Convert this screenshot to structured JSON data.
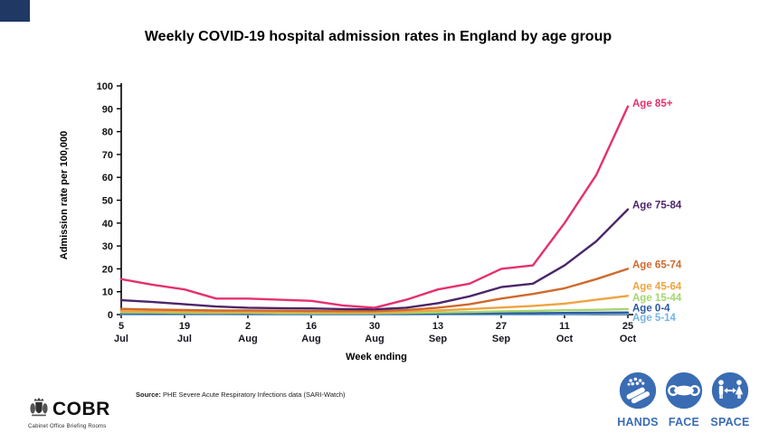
{
  "title": "Weekly COVID-19 hospital admission rates in England by age group",
  "corner_accent_color": "#1f3864",
  "chart_data": {
    "type": "line",
    "title": "Weekly COVID-19 hospital admission rates in England by age group",
    "xlabel": "Week ending",
    "ylabel": "Admission rate per 100,000",
    "ylim": [
      0,
      100
    ],
    "y_ticks": [
      0,
      10,
      20,
      30,
      40,
      50,
      60,
      70,
      80,
      90,
      100
    ],
    "grid": false,
    "legend_position": "right-end-labels",
    "x": [
      "5 Jul",
      "12 Jul",
      "19 Jul",
      "26 Jul",
      "2 Aug",
      "9 Aug",
      "16 Aug",
      "23 Aug",
      "30 Aug",
      "6 Sep",
      "13 Sep",
      "20 Sep",
      "27 Sep",
      "4 Oct",
      "11 Oct",
      "18 Oct",
      "25 Oct"
    ],
    "x_tick_labels": [
      {
        "day": "5",
        "month": "Jul"
      },
      {
        "day": "19",
        "month": "Jul"
      },
      {
        "day": "2",
        "month": "Aug"
      },
      {
        "day": "16",
        "month": "Aug"
      },
      {
        "day": "30",
        "month": "Aug"
      },
      {
        "day": "13",
        "month": "Sep"
      },
      {
        "day": "27",
        "month": "Sep"
      },
      {
        "day": "11",
        "month": "Oct"
      },
      {
        "day": "25",
        "month": "Oct"
      }
    ],
    "series": [
      {
        "name": "Age 85+",
        "color": "#e5316e",
        "values": [
          15.5,
          13,
          11,
          7,
          7,
          6.5,
          6,
          4,
          3,
          6.5,
          11,
          13.5,
          20,
          21.5,
          40,
          61,
          91
        ]
      },
      {
        "name": "Age 75-84",
        "color": "#4b2669",
        "values": [
          6.3,
          5.5,
          4.5,
          3.5,
          3,
          2.8,
          2.7,
          2.4,
          2.3,
          3,
          5,
          8,
          12,
          13.5,
          21.5,
          32,
          46
        ]
      },
      {
        "name": "Age 65-74",
        "color": "#ce6a2c",
        "values": [
          2.5,
          2.2,
          2,
          1.8,
          1.8,
          1.7,
          1.6,
          1.5,
          1.5,
          2,
          3,
          4.5,
          7,
          9,
          11.5,
          15.5,
          20
        ]
      },
      {
        "name": "Age 45-64",
        "color": "#efa340",
        "values": [
          1.5,
          1.4,
          1.3,
          1.2,
          1.2,
          1.1,
          1.1,
          1,
          1,
          1.3,
          1.8,
          2.4,
          3.1,
          3.8,
          4.8,
          6.5,
          8.2
        ]
      },
      {
        "name": "Age 15-44",
        "color": "#a5d66e",
        "values": [
          1,
          0.9,
          0.8,
          0.7,
          0.7,
          0.6,
          0.6,
          0.6,
          0.6,
          0.7,
          0.9,
          1.1,
          1.4,
          1.6,
          1.9,
          2.1,
          2.4
        ]
      },
      {
        "name": "Age 0-4",
        "color": "#2c5aa0",
        "values": [
          0.6,
          0.5,
          0.5,
          0.5,
          0.4,
          0.4,
          0.4,
          0.4,
          0.4,
          0.4,
          0.5,
          0.5,
          0.6,
          0.6,
          0.7,
          0.8,
          0.9
        ]
      },
      {
        "name": "Age 5-14",
        "color": "#76b4e4",
        "values": [
          0.2,
          0.2,
          0.2,
          0.2,
          0.1,
          0.1,
          0.1,
          0.1,
          0.1,
          0.1,
          0.2,
          0.2,
          0.2,
          0.2,
          0.2,
          0.3,
          0.3
        ]
      }
    ]
  },
  "source": {
    "label": "Source:",
    "text": " PHE Severe Acute Respiratory Infections data (SARI-Watch)"
  },
  "cobr": {
    "wordmark": "COBR",
    "tagline": "Cabinet Office Briefing Rooms"
  },
  "campaign": {
    "color": "#3a6cb4",
    "items": [
      {
        "label": "HANDS",
        "icon": "washing-hands-icon"
      },
      {
        "label": "FACE",
        "icon": "face-mask-icon"
      },
      {
        "label": "SPACE",
        "icon": "social-distance-icon"
      }
    ]
  }
}
